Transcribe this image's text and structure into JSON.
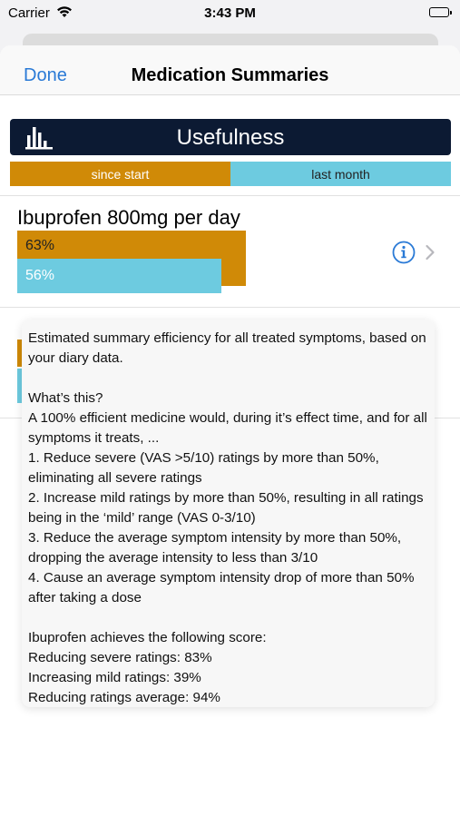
{
  "status_bar": {
    "carrier": "Carrier",
    "time": "3:43 PM"
  },
  "nav": {
    "done_label": "Done",
    "title": "Medication Summaries"
  },
  "header": {
    "label": "Usefulness"
  },
  "legend": {
    "since_label": "since start",
    "last_label": "last month"
  },
  "colors": {
    "since": "#d08a07",
    "last": "#6dcbe0",
    "header": "#0c1a33",
    "accent": "#2a7ad6"
  },
  "row": {
    "title": "Ibuprofen 800mg per day",
    "since_value": "63%",
    "last_value": "56%"
  },
  "row2": {
    "title": ""
  },
  "tooltip": {
    "intro": "Estimated summary efficiency for all treated symptoms, based on your diary data.",
    "heading": "What’s this?",
    "lead": "A 100% efficient medicine would, during it’s effect time, and for all symptoms it treats, ...",
    "items": [
      "1. Reduce severe (VAS >5/10) ratings by more than 50%, eliminating all severe ratings",
      "2. Increase mild ratings by more than 50%, resulting in all ratings being in the ‘mild’ range (VAS 0-3/10)",
      "3. Reduce the average symptom intensity by more than 50%, dropping the average intensity to less than 3/10",
      "4. Cause an average symptom intensity drop of more than 50% after taking a dose"
    ],
    "score_heading": "Ibuprofen achieves the following score:",
    "scores": [
      "Reducing severe ratings: 83%",
      "Increasing mild ratings: 39%",
      "Reducing ratings average: 94%"
    ]
  }
}
